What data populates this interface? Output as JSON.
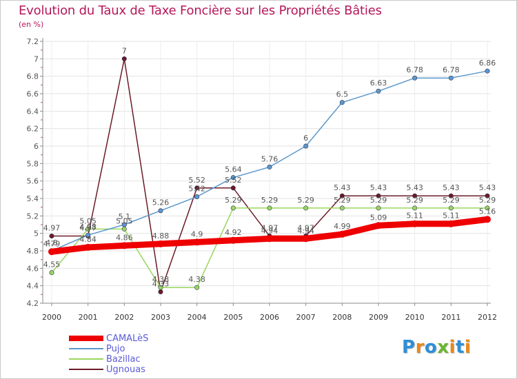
{
  "title": "Evolution du Taux de Taxe Foncière sur les Propriétés Bâties",
  "unit_label": "(en %)",
  "logo": {
    "text": "Proxiti",
    "letters": [
      "P",
      "r",
      "o",
      "x",
      "i",
      "t",
      "i"
    ],
    "colors": [
      "#2e8fd6",
      "#e8891a",
      "#2e8fd6",
      "#6cb52e",
      "#e8891a",
      "#2e8fd6",
      "#e8891a"
    ]
  },
  "chart_data": {
    "type": "line",
    "title": "Evolution du Taux de Taxe Foncière sur les Propriétés Bâties",
    "ylabel": "(en %)",
    "xlabel": "",
    "ylim": [
      4.2,
      7.2
    ],
    "yticks": [
      "4.2",
      "4.4",
      "4.6",
      "4.8",
      "5",
      "5.2",
      "5.4",
      "5.6",
      "5.8",
      "6",
      "6.2",
      "6.4",
      "6.6",
      "6.8",
      "7",
      "7.2"
    ],
    "ytick_values": [
      4.2,
      4.4,
      4.6,
      4.8,
      5.0,
      5.2,
      5.4,
      5.6,
      5.8,
      6.0,
      6.2,
      6.4,
      6.6,
      6.8,
      7.0,
      7.2
    ],
    "categories": [
      "2000",
      "2001",
      "2002",
      "2003",
      "2004",
      "2005",
      "2006",
      "2007",
      "2008",
      "2009",
      "2010",
      "2011",
      "2012"
    ],
    "grid": true,
    "series": [
      {
        "name": "Ugnouas",
        "color": "#6b1a26",
        "values": [
          4.97,
          4.97,
          7.0,
          4.33,
          5.52,
          5.52,
          4.97,
          4.97,
          5.43,
          5.43,
          5.43,
          5.43,
          5.43
        ],
        "labels": [
          "4.97",
          "4.97",
          "7",
          "4.33",
          "5.52",
          "5.52",
          "4.97",
          "4.97",
          "5.43",
          "5.43",
          "5.43",
          "5.43",
          "5.43"
        ]
      },
      {
        "name": "Bazillac",
        "color": "#9ad65e",
        "values": [
          4.55,
          5.05,
          5.05,
          4.38,
          4.38,
          5.29,
          5.29,
          5.29,
          5.29,
          5.29,
          5.29,
          5.29,
          5.29
        ],
        "labels": [
          "4.55",
          "5.05",
          "5.05",
          "4.38",
          "4.38",
          "5.29",
          "5.29",
          "5.29",
          "5.29",
          "5.29",
          "5.29",
          "5.29",
          "5.29"
        ]
      },
      {
        "name": "Pujo",
        "color": "#5b98cc",
        "values": [
          4.8,
          4.98,
          5.1,
          5.26,
          5.42,
          5.64,
          5.76,
          6.0,
          6.5,
          6.63,
          6.78,
          6.78,
          6.86
        ],
        "labels": [
          "4.8",
          "4.98",
          "5.1",
          "5.26",
          "5.42",
          "5.64",
          "5.76",
          "6",
          "6.5",
          "6.63",
          "6.78",
          "6.78",
          "6.86"
        ]
      },
      {
        "name": "CAMALèS",
        "color": "#ee0000",
        "values": [
          4.79,
          4.84,
          4.86,
          4.88,
          4.9,
          4.92,
          4.94,
          4.94,
          4.99,
          5.09,
          5.11,
          5.11,
          5.16
        ],
        "labels": [
          "4.79",
          "4.84",
          "4.86",
          "4.88",
          "4.9",
          "4.92",
          "4.94",
          "4.94",
          "4.99",
          "5.09",
          "5.11",
          "5.11",
          "5.16"
        ]
      }
    ],
    "legend": [
      "CAMALèS",
      "Pujo",
      "Bazillac",
      "Ugnouas"
    ],
    "legend_position": "bottom-left"
  }
}
